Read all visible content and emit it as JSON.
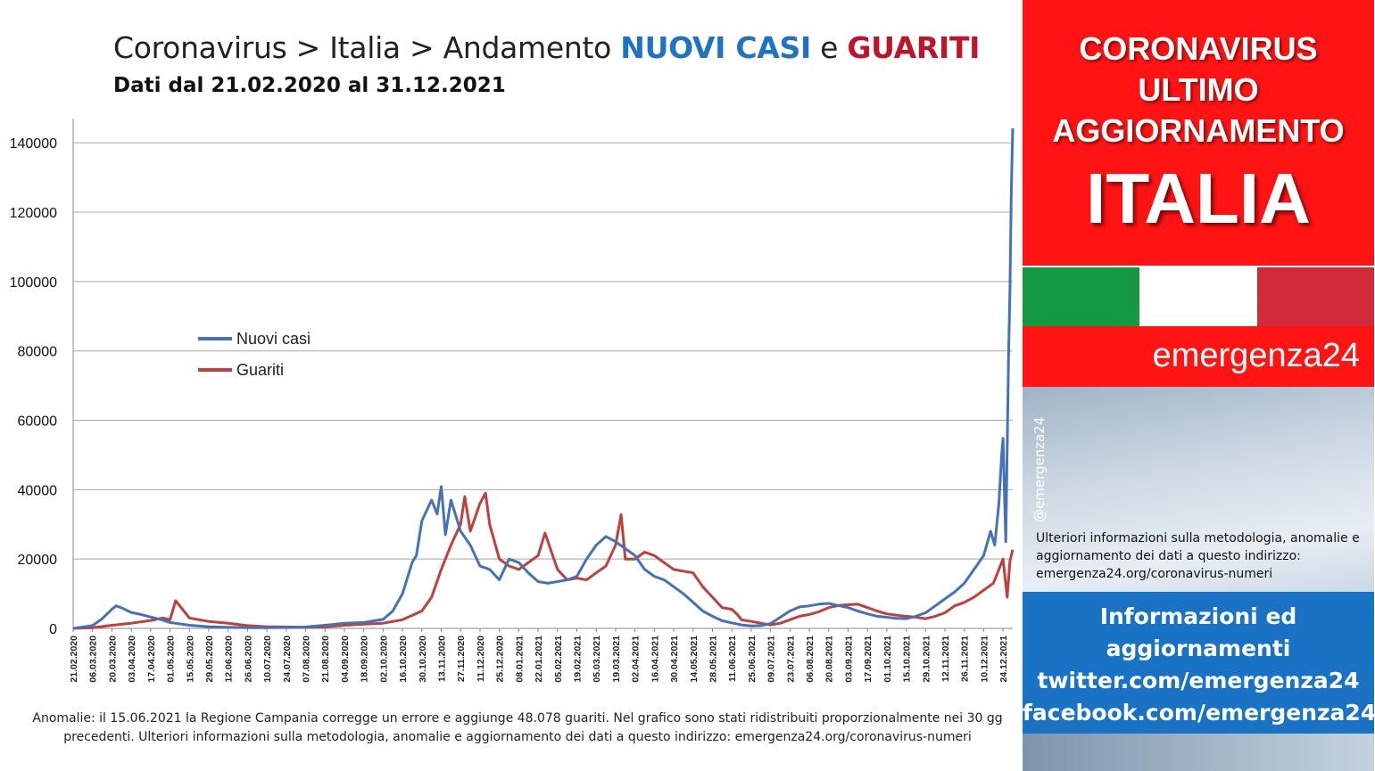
{
  "header": {
    "title_prefix": "Coronavirus > Italia > Andamento",
    "title_blue": "NUOVI CASI",
    "title_mid": "e",
    "title_red": "GUARITI",
    "subtitle": "Dati dal 21.02.2020 al 31.12.2021"
  },
  "footer_note": {
    "line1": "Anomalie: il 15.06.2021 la Regione Campania corregge un errore e aggiunge 48.078 guariti. Nel grafico sono stati ridistribuiti proporzionalmente nei 30 gg",
    "line2": "precedenti.  Ulteriori informazioni sulla metodologia, anomalie e aggiornamento dei dati a questo indirizzo: emergenza24.org/coronavirus-numeri"
  },
  "sidebar": {
    "line1": "CORONAVIRUS",
    "line2": "ULTIMO",
    "line3": "AGGIORNAMENTO",
    "big": "ITALIA",
    "brand": "emergenza24",
    "handle": "@emergenza24",
    "meta_text": "Ulteriori informazioni sulla metodologia, anomalie e aggiornamento dei dati a questo indirizzo: emergenza24.org/coronavirus-numeri",
    "info_line1": "Informazioni ed",
    "info_line2": "aggiornamenti",
    "info_line3": "twitter.com/emergenza24",
    "info_line4": "facebook.com/emergenza24",
    "flag_colors": [
      "#139a43",
      "#ffffff",
      "#d12a3a"
    ]
  },
  "colors": {
    "nuovi_casi": "#4572b7",
    "guariti": "#c0403c",
    "red_panel": "#ff1313",
    "blue_panel": "#1a72c4"
  },
  "chart_data": {
    "type": "line",
    "title": "Coronavirus > Italia > Andamento NUOVI CASI e GUARITI",
    "subtitle": "Dati dal 21.02.2020 al 31.12.2021",
    "xlabel": "",
    "ylabel": "",
    "ylim": [
      0,
      147000
    ],
    "yticks": [
      0,
      20000,
      40000,
      60000,
      80000,
      100000,
      120000,
      140000
    ],
    "grid": true,
    "legend_position": "center-left",
    "x_range": [
      "21.02.2020",
      "31.12.2021"
    ],
    "x_tick_labels": [
      "21.02.2020",
      "06.03.2020",
      "20.03.2020",
      "03.04.2020",
      "17.04.2020",
      "01.05.2020",
      "15.05.2020",
      "29.05.2020",
      "12.06.2020",
      "26.06.2020",
      "10.07.2020",
      "24.07.2020",
      "07.08.2020",
      "21.08.2020",
      "04.09.2020",
      "18.09.2020",
      "02.10.2020",
      "16.10.2020",
      "30.10.2020",
      "13.11.2020",
      "27.11.2020",
      "11.12.2020",
      "25.12.2020",
      "08.01.2021",
      "22.01.2021",
      "05.02.2021",
      "19.02.2021",
      "05.03.2021",
      "19.03.2021",
      "02.04.2021",
      "16.04.2021",
      "30.04.2021",
      "14.05.2021",
      "28.05.2021",
      "11.06.2021",
      "25.06.2021",
      "09.07.2021",
      "23.07.2021",
      "06.08.2021",
      "20.08.2021",
      "03.09.2021",
      "17.09.2021",
      "01.10.2021",
      "15.10.2021",
      "29.10.2021",
      "12.11.2021",
      "26.11.2021",
      "10.12.2021",
      "24.12.2021"
    ],
    "series": [
      {
        "name": "Nuovi casi",
        "color": "#4572b7",
        "points": [
          [
            "21.02.2020",
            0
          ],
          [
            "06.03.2020",
            800
          ],
          [
            "13.03.2020",
            2800
          ],
          [
            "20.03.2020",
            5500
          ],
          [
            "23.03.2020",
            6500
          ],
          [
            "27.03.2020",
            5900
          ],
          [
            "03.04.2020",
            4600
          ],
          [
            "10.04.2020",
            4000
          ],
          [
            "17.04.2020",
            3300
          ],
          [
            "24.04.2020",
            2600
          ],
          [
            "01.05.2020",
            1700
          ],
          [
            "15.05.2020",
            900
          ],
          [
            "29.05.2020",
            500
          ],
          [
            "12.06.2020",
            300
          ],
          [
            "26.06.2020",
            200
          ],
          [
            "10.07.2020",
            200
          ],
          [
            "24.07.2020",
            250
          ],
          [
            "07.08.2020",
            400
          ],
          [
            "21.08.2020",
            900
          ],
          [
            "04.09.2020",
            1500
          ],
          [
            "18.09.2020",
            1700
          ],
          [
            "02.10.2020",
            2600
          ],
          [
            "09.10.2020",
            5000
          ],
          [
            "16.10.2020",
            10000
          ],
          [
            "23.10.2020",
            19000
          ],
          [
            "26.10.2020",
            21000
          ],
          [
            "30.10.2020",
            31000
          ],
          [
            "06.11.2020",
            37000
          ],
          [
            "10.11.2020",
            33000
          ],
          [
            "13.11.2020",
            40900
          ],
          [
            "16.11.2020",
            27000
          ],
          [
            "20.11.2020",
            37000
          ],
          [
            "27.11.2020",
            28000
          ],
          [
            "04.12.2020",
            24000
          ],
          [
            "11.12.2020",
            18000
          ],
          [
            "18.12.2020",
            17000
          ],
          [
            "25.12.2020",
            14000
          ],
          [
            "01.01.2021",
            20000
          ],
          [
            "08.01.2021",
            19000
          ],
          [
            "15.01.2021",
            16000
          ],
          [
            "22.01.2021",
            13500
          ],
          [
            "29.01.2021",
            13000
          ],
          [
            "05.02.2021",
            13500
          ],
          [
            "12.02.2021",
            14000
          ],
          [
            "19.02.2021",
            15000
          ],
          [
            "26.02.2021",
            20000
          ],
          [
            "05.03.2021",
            24000
          ],
          [
            "12.03.2021",
            26500
          ],
          [
            "19.03.2021",
            25000
          ],
          [
            "26.03.2021",
            23000
          ],
          [
            "02.04.2021",
            21000
          ],
          [
            "09.04.2021",
            17000
          ],
          [
            "16.04.2021",
            15000
          ],
          [
            "23.04.2021",
            14000
          ],
          [
            "30.04.2021",
            12000
          ],
          [
            "07.05.2021",
            10000
          ],
          [
            "14.05.2021",
            7500
          ],
          [
            "21.05.2021",
            5000
          ],
          [
            "28.05.2021",
            3500
          ],
          [
            "04.06.2021",
            2200
          ],
          [
            "11.06.2021",
            1600
          ],
          [
            "18.06.2021",
            1000
          ],
          [
            "25.06.2021",
            700
          ],
          [
            "02.07.2021",
            800
          ],
          [
            "09.07.2021",
            1400
          ],
          [
            "16.07.2021",
            3200
          ],
          [
            "23.07.2021",
            5000
          ],
          [
            "30.07.2021",
            6200
          ],
          [
            "06.08.2021",
            6500
          ],
          [
            "13.08.2021",
            7000
          ],
          [
            "20.08.2021",
            7200
          ],
          [
            "27.08.2021",
            6600
          ],
          [
            "03.09.2021",
            6000
          ],
          [
            "10.09.2021",
            5000
          ],
          [
            "17.09.2021",
            4200
          ],
          [
            "24.09.2021",
            3500
          ],
          [
            "01.10.2021",
            3200
          ],
          [
            "08.10.2021",
            2900
          ],
          [
            "15.10.2021",
            2800
          ],
          [
            "22.10.2021",
            3500
          ],
          [
            "29.10.2021",
            4500
          ],
          [
            "05.11.2021",
            6500
          ],
          [
            "12.11.2021",
            8500
          ],
          [
            "19.11.2021",
            10500
          ],
          [
            "26.11.2021",
            13000
          ],
          [
            "03.12.2021",
            17000
          ],
          [
            "10.12.2021",
            21000
          ],
          [
            "15.12.2021",
            28000
          ],
          [
            "18.12.2021",
            24000
          ],
          [
            "21.12.2021",
            36000
          ],
          [
            "23.12.2021",
            50000
          ],
          [
            "24.12.2021",
            54800
          ],
          [
            "26.12.2021",
            25000
          ],
          [
            "28.12.2021",
            78000
          ],
          [
            "29.12.2021",
            98000
          ],
          [
            "30.12.2021",
            126000
          ],
          [
            "31.12.2021",
            144200
          ]
        ]
      },
      {
        "name": "Guariti",
        "color": "#c0403c",
        "points": [
          [
            "21.02.2020",
            0
          ],
          [
            "06.03.2020",
            200
          ],
          [
            "20.03.2020",
            900
          ],
          [
            "03.04.2020",
            1500
          ],
          [
            "17.04.2020",
            2300
          ],
          [
            "26.04.2020",
            3000
          ],
          [
            "01.05.2020",
            2500
          ],
          [
            "05.05.2020",
            8000
          ],
          [
            "15.05.2020",
            3000
          ],
          [
            "22.05.2020",
            2500
          ],
          [
            "29.05.2020",
            2000
          ],
          [
            "12.06.2020",
            1500
          ],
          [
            "26.06.2020",
            800
          ],
          [
            "10.07.2020",
            500
          ],
          [
            "24.07.2020",
            400
          ],
          [
            "07.08.2020",
            300
          ],
          [
            "21.08.2020",
            400
          ],
          [
            "04.09.2020",
            900
          ],
          [
            "18.09.2020",
            1200
          ],
          [
            "02.10.2020",
            1500
          ],
          [
            "16.10.2020",
            2500
          ],
          [
            "30.10.2020",
            5000
          ],
          [
            "06.11.2020",
            9000
          ],
          [
            "13.11.2020",
            17000
          ],
          [
            "20.11.2020",
            24000
          ],
          [
            "27.11.2020",
            30000
          ],
          [
            "30.11.2020",
            38000
          ],
          [
            "04.12.2020",
            28000
          ],
          [
            "11.12.2020",
            36000
          ],
          [
            "15.12.2020",
            39000
          ],
          [
            "18.12.2020",
            30000
          ],
          [
            "25.12.2020",
            20000
          ],
          [
            "01.01.2021",
            18000
          ],
          [
            "08.01.2021",
            17000
          ],
          [
            "15.01.2021",
            19000
          ],
          [
            "22.01.2021",
            21000
          ],
          [
            "27.01.2021",
            27500
          ],
          [
            "05.02.2021",
            17000
          ],
          [
            "12.02.2021",
            14000
          ],
          [
            "19.02.2021",
            14500
          ],
          [
            "26.02.2021",
            14000
          ],
          [
            "05.03.2021",
            16000
          ],
          [
            "12.03.2021",
            18000
          ],
          [
            "19.03.2021",
            24000
          ],
          [
            "23.03.2021",
            32800
          ],
          [
            "26.03.2021",
            20000
          ],
          [
            "02.04.2021",
            20000
          ],
          [
            "09.04.2021",
            22000
          ],
          [
            "16.04.2021",
            21000
          ],
          [
            "23.04.2021",
            19000
          ],
          [
            "30.04.2021",
            17000
          ],
          [
            "07.05.2021",
            16500
          ],
          [
            "14.05.2021",
            16000
          ],
          [
            "21.05.2021",
            12000
          ],
          [
            "28.05.2021",
            9000
          ],
          [
            "04.06.2021",
            6000
          ],
          [
            "11.06.2021",
            5500
          ],
          [
            "15.06.2021",
            4000
          ],
          [
            "18.06.2021",
            2500
          ],
          [
            "25.06.2021",
            2000
          ],
          [
            "02.07.2021",
            1500
          ],
          [
            "09.07.2021",
            1000
          ],
          [
            "16.07.2021",
            1500
          ],
          [
            "23.07.2021",
            2500
          ],
          [
            "30.07.2021",
            3500
          ],
          [
            "06.08.2021",
            4000
          ],
          [
            "13.08.2021",
            4800
          ],
          [
            "20.08.2021",
            6000
          ],
          [
            "27.08.2021",
            6600
          ],
          [
            "03.09.2021",
            6800
          ],
          [
            "10.09.2021",
            7000
          ],
          [
            "17.09.2021",
            6000
          ],
          [
            "24.09.2021",
            5000
          ],
          [
            "01.10.2021",
            4200
          ],
          [
            "08.10.2021",
            3800
          ],
          [
            "15.10.2021",
            3500
          ],
          [
            "22.10.2021",
            3200
          ],
          [
            "29.10.2021",
            2800
          ],
          [
            "05.11.2021",
            3500
          ],
          [
            "12.11.2021",
            4500
          ],
          [
            "19.11.2021",
            6500
          ],
          [
            "26.11.2021",
            7500
          ],
          [
            "03.12.2021",
            9000
          ],
          [
            "10.12.2021",
            11000
          ],
          [
            "17.12.2021",
            13000
          ],
          [
            "21.12.2021",
            17000
          ],
          [
            "24.12.2021",
            20000
          ],
          [
            "27.12.2021",
            9000
          ],
          [
            "29.12.2021",
            19500
          ],
          [
            "31.12.2021",
            22700
          ]
        ]
      }
    ]
  }
}
